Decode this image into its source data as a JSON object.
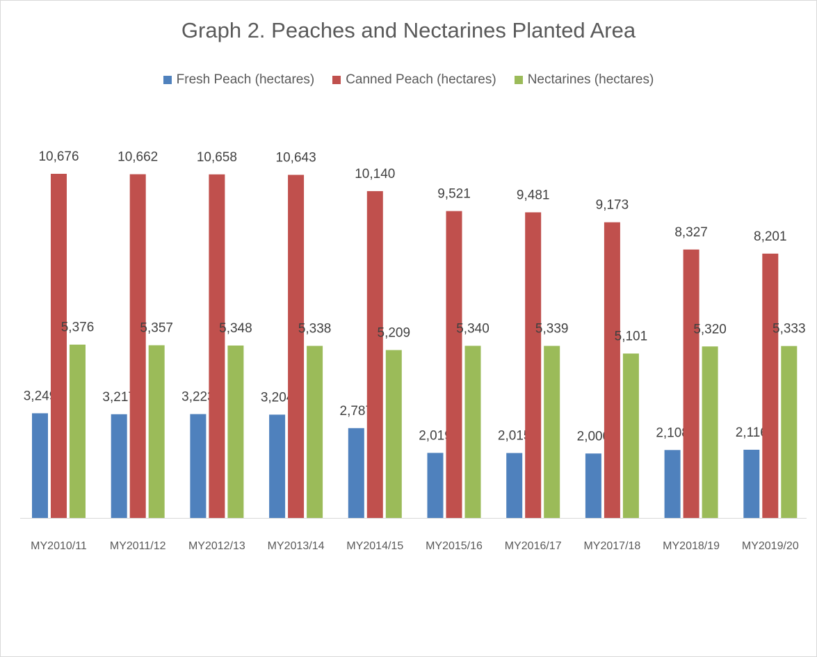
{
  "chart_data": {
    "type": "bar",
    "title": "Graph 2. Peaches and Nectarines Planted Area",
    "categories": [
      "MY2010/11",
      "MY2011/12",
      "MY2012/13",
      "MY2013/14",
      "MY2014/15",
      "MY2015/16",
      "MY2016/17",
      "MY2017/18",
      "MY2018/19",
      "MY2019/20"
    ],
    "series": [
      {
        "name": "Fresh Peach (hectares)",
        "color": "#4f81bd",
        "values": [
          3249,
          3217,
          3223,
          3204,
          2787,
          2019,
          2015,
          2000,
          2108,
          2116
        ],
        "labels": [
          "3,249",
          "3,217",
          "3,223",
          "3,204",
          "2,787",
          "2,019",
          "2,015",
          "2,000",
          "2,108",
          "2,116"
        ]
      },
      {
        "name": "Canned Peach (hectares)",
        "color": "#c0504d",
        "values": [
          10676,
          10662,
          10658,
          10643,
          10140,
          9521,
          9481,
          9173,
          8327,
          8201
        ],
        "labels": [
          "10,676",
          "10,662",
          "10,658",
          "10,643",
          "10,140",
          "9,521",
          "9,481",
          "9,173",
          "8,327",
          "8,201"
        ]
      },
      {
        "name": "Nectarines (hectares)",
        "color": "#9bbb59",
        "values": [
          5376,
          5357,
          5348,
          5338,
          5209,
          5340,
          5339,
          5101,
          5320,
          5333
        ],
        "labels": [
          "5,376",
          "5,357",
          "5,348",
          "5,338",
          "5,209",
          "5,340",
          "5,339",
          "5,101",
          "5,320",
          "5,333"
        ]
      }
    ],
    "xlabel": "",
    "ylabel": "",
    "ylim": [
      0,
      10676
    ],
    "grid": false,
    "legend_position": "top",
    "data_labels": true
  }
}
